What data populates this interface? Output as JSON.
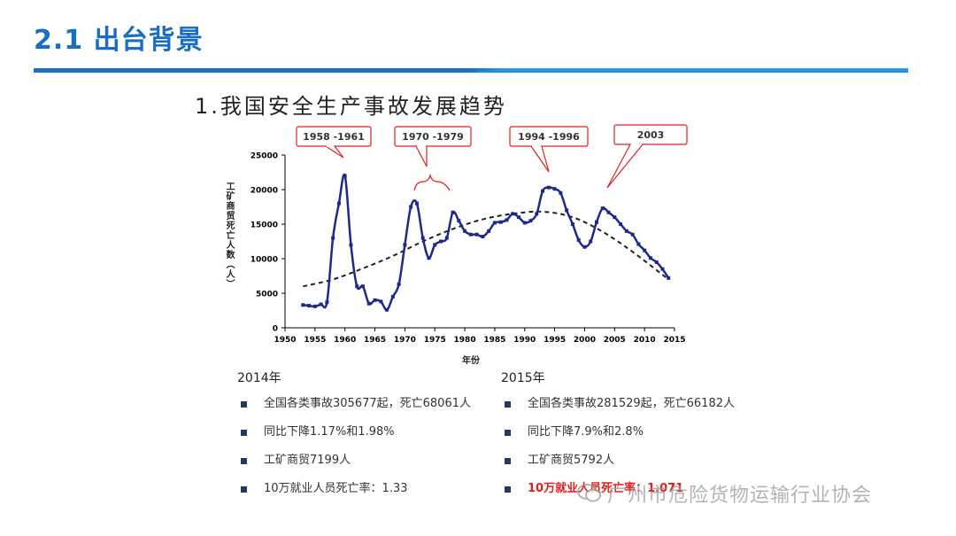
{
  "slide": {
    "title": "2.1 出台背景"
  },
  "chart_data": {
    "type": "line",
    "title": "1.我国安全生产事故发展趋势",
    "xlabel": "年份",
    "ylabel": "工矿商贸死亡人数（人）",
    "xlim": [
      1950,
      2015
    ],
    "ylim": [
      0,
      25000
    ],
    "xticks": [
      "1950",
      "1955",
      "1960",
      "1965",
      "1970",
      "1975",
      "1980",
      "1985",
      "1990",
      "1995",
      "2000",
      "2005",
      "2010",
      "2015"
    ],
    "yticks": [
      "0",
      "5000",
      "10000",
      "15000",
      "20000",
      "25000"
    ],
    "series": [
      {
        "name": "",
        "x": [
          1953,
          1954,
          1955,
          1956,
          1957,
          1958,
          1959,
          1960,
          1961,
          1962,
          1963,
          1964,
          1965,
          1966,
          1967,
          1968,
          1969,
          1970,
          1971,
          1972,
          1973,
          1974,
          1975,
          1976,
          1977,
          1978,
          1979,
          1980,
          1981,
          1982,
          1983,
          1984,
          1985,
          1986,
          1987,
          1988,
          1989,
          1990,
          1991,
          1992,
          1993,
          1994,
          1995,
          1996,
          1997,
          1998,
          1999,
          2000,
          2001,
          2002,
          2003,
          2004,
          2005,
          2006,
          2007,
          2008,
          2009,
          2010,
          2011,
          2012,
          2013,
          2014
        ],
        "y": [
          3300,
          3200,
          3100,
          3400,
          3700,
          13000,
          18000,
          22000,
          12000,
          6000,
          6000,
          3500,
          4000,
          3800,
          2600,
          4500,
          6300,
          12000,
          17500,
          18000,
          13000,
          10100,
          12000,
          12500,
          13000,
          16700,
          15500,
          14000,
          13500,
          13500,
          13200,
          14000,
          15200,
          15300,
          15600,
          16500,
          16000,
          15200,
          15500,
          16500,
          19800,
          20300,
          20100,
          19500,
          17000,
          15000,
          12700,
          11700,
          12500,
          15300,
          17300,
          16700,
          16000,
          15000,
          14000,
          13500,
          12100,
          11200,
          10100,
          9500,
          8500,
          7199
        ]
      },
      {
        "name": "",
        "style": "dashed-trend",
        "x": [
          1953,
          1958,
          1963,
          1968,
          1973,
          1978,
          1983,
          1988,
          1993,
          1998,
          2003,
          2008,
          2014
        ],
        "y": [
          6000,
          7000,
          8600,
          10400,
          12500,
          14300,
          15700,
          16500,
          16800,
          16000,
          13900,
          11000,
          7000
        ]
      }
    ],
    "annotations": [
      {
        "label": "1958 -1961"
      },
      {
        "label": "1970 -1979"
      },
      {
        "label": "1994 -1996"
      },
      {
        "label": "2003"
      }
    ]
  },
  "stats": {
    "left": {
      "year": "2014年",
      "items": [
        {
          "text": "全国各类事故305677起，死亡68061人"
        },
        {
          "text": "同比下降1.17%和1.98%"
        },
        {
          "text": "工矿商贸7199人"
        },
        {
          "text": "10万就业人员死亡率：1.33"
        }
      ]
    },
    "right": {
      "year": "2015年",
      "items": [
        {
          "text": "全国各类事故281529起，死亡66182人"
        },
        {
          "text": "同比下降7.9%和2.8%"
        },
        {
          "text": "工矿商贸5792人"
        },
        {
          "text": "10万就业人员死亡率：1.071",
          "highlight": true
        }
      ]
    }
  },
  "watermark": {
    "text": "广州市危险货物运输行业协会",
    "icon": "wechat-icon"
  },
  "colors": {
    "accent": "#1a6fc4",
    "series": "#1c2a8c",
    "callout": "#e02020"
  }
}
